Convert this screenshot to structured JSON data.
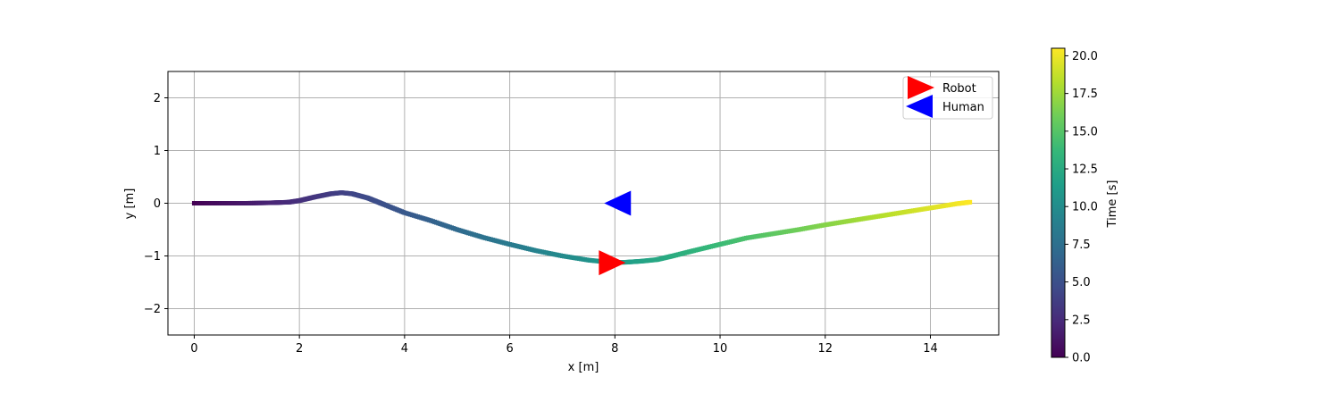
{
  "chart_data": {
    "type": "scatter",
    "title": "",
    "xlabel": "x [m]",
    "ylabel": "y [m]",
    "xlim": [
      -0.5,
      15.3
    ],
    "ylim": [
      -2.5,
      2.5
    ],
    "x_ticks": [
      0,
      2,
      4,
      6,
      8,
      10,
      12,
      14
    ],
    "y_ticks": [
      -2,
      -1,
      0,
      1,
      2
    ],
    "grid": true,
    "colormap": "viridis",
    "colorbar": {
      "label": "Time [s]",
      "range": [
        0.0,
        20.5
      ],
      "ticks": [
        0.0,
        2.5,
        5.0,
        7.5,
        10.0,
        12.5,
        15.0,
        17.5,
        20.0
      ],
      "tick_labels": [
        "0.0",
        "2.5",
        "5.0",
        "7.5",
        "10.0",
        "12.5",
        "15.0",
        "17.5",
        "20.0"
      ]
    },
    "trajectory": {
      "x": [
        0.0,
        0.5,
        1.0,
        1.5,
        1.8,
        2.0,
        2.3,
        2.6,
        2.8,
        3.0,
        3.3,
        3.6,
        4.0,
        4.5,
        5.0,
        5.5,
        6.0,
        6.5,
        7.0,
        7.5,
        7.9,
        8.2,
        8.5,
        8.8,
        9.1,
        9.5,
        10.0,
        10.5,
        11.0,
        11.5,
        12.0,
        12.5,
        13.0,
        13.5,
        14.0,
        14.5,
        14.75
      ],
      "y": [
        0.0,
        0.0,
        0.0,
        0.01,
        0.02,
        0.05,
        0.12,
        0.18,
        0.2,
        0.18,
        0.1,
        -0.02,
        -0.18,
        -0.33,
        -0.5,
        -0.65,
        -0.78,
        -0.9,
        -1.0,
        -1.08,
        -1.12,
        -1.12,
        -1.1,
        -1.07,
        -1.0,
        -0.9,
        -0.78,
        -0.66,
        -0.58,
        -0.5,
        -0.41,
        -0.33,
        -0.25,
        -0.17,
        -0.09,
        -0.01,
        0.02
      ],
      "t": [
        0.0,
        0.7,
        1.4,
        2.1,
        2.5,
        2.8,
        3.2,
        3.6,
        3.9,
        4.2,
        4.6,
        5.0,
        5.6,
        6.3,
        7.0,
        7.7,
        8.4,
        9.1,
        9.8,
        10.4,
        11.0,
        11.4,
        11.8,
        12.2,
        12.6,
        13.2,
        13.9,
        14.6,
        15.3,
        16.0,
        16.7,
        17.4,
        18.1,
        18.8,
        19.5,
        20.1,
        20.5
      ]
    },
    "markers": [
      {
        "name": "Robot",
        "x": 7.95,
        "y": -1.13,
        "color": "#ff0000",
        "direction": "right"
      },
      {
        "name": "Human",
        "x": 8.05,
        "y": 0.0,
        "color": "#0000ff",
        "direction": "left"
      }
    ],
    "legend": {
      "placement": "top-right",
      "entries": [
        "Robot",
        "Human"
      ]
    }
  }
}
